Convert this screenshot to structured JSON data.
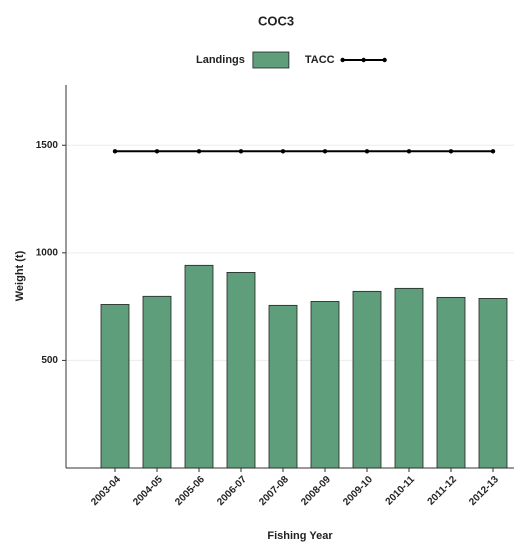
{
  "chart_data": {
    "type": "bar",
    "title": "COC3",
    "x_label": "Fishing Year",
    "y_label": "Weight (t)",
    "categories": [
      "2003-04",
      "2004-05",
      "2005-06",
      "2006-07",
      "2007-08",
      "2008-09",
      "2009-10",
      "2010-11",
      "2011-12",
      "2012-13"
    ],
    "series": [
      {
        "name": "Landings",
        "type": "bar",
        "color": "#5e9e7a",
        "values": [
          760,
          798,
          942,
          909,
          756,
          774,
          821,
          835,
          793,
          788
        ]
      },
      {
        "name": "TACC",
        "type": "line",
        "color": "#000000",
        "values": [
          1472,
          1472,
          1472,
          1472,
          1472,
          1472,
          1472,
          1472,
          1472,
          1472
        ]
      }
    ],
    "ylim": [
      0,
      1780
    ],
    "yticks": [
      500,
      1000,
      1500
    ],
    "grid": true,
    "legend": "top"
  }
}
